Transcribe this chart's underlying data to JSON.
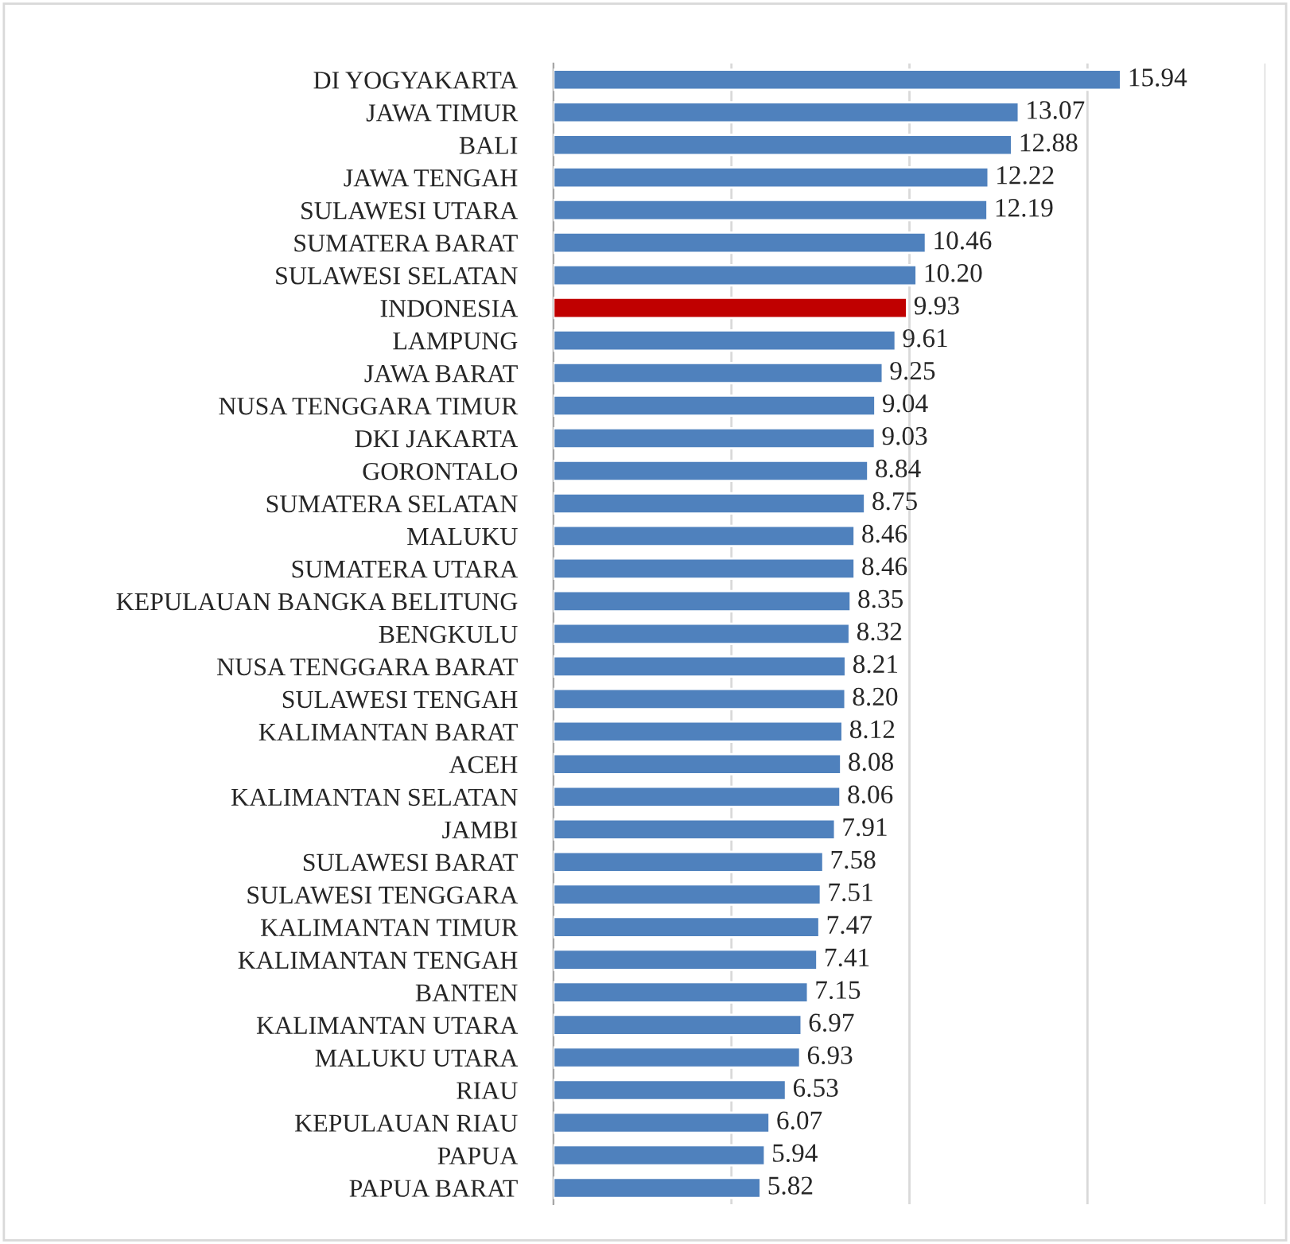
{
  "chart_data": {
    "type": "bar",
    "orientation": "horizontal",
    "categories": [
      "DI YOGYAKARTA",
      "JAWA TIMUR",
      "BALI",
      "JAWA TENGAH",
      "SULAWESI UTARA",
      "SUMATERA BARAT",
      "SULAWESI SELATAN",
      "INDONESIA",
      "LAMPUNG",
      "JAWA BARAT",
      "NUSA TENGGARA TIMUR",
      "DKI JAKARTA",
      "GORONTALO",
      "SUMATERA SELATAN",
      "MALUKU",
      "SUMATERA UTARA",
      "KEPULAUAN BANGKA BELITUNG",
      "BENGKULU",
      "NUSA TENGGARA BARAT",
      "SULAWESI TENGAH",
      "KALIMANTAN BARAT",
      "ACEH",
      "KALIMANTAN SELATAN",
      "JAMBI",
      "SULAWESI BARAT",
      "SULAWESI TENGGARA",
      "KALIMANTAN TIMUR",
      "KALIMANTAN TENGAH",
      "BANTEN",
      "KALIMANTAN UTARA",
      "MALUKU UTARA",
      "RIAU",
      "KEPULAUAN RIAU",
      "PAPUA",
      "PAPUA BARAT"
    ],
    "values": [
      15.94,
      13.07,
      12.88,
      12.22,
      12.19,
      10.46,
      10.2,
      9.93,
      9.61,
      9.25,
      9.04,
      9.03,
      8.84,
      8.75,
      8.46,
      8.46,
      8.35,
      8.32,
      8.21,
      8.2,
      8.12,
      8.08,
      8.06,
      7.91,
      7.58,
      7.51,
      7.47,
      7.41,
      7.15,
      6.97,
      6.93,
      6.53,
      6.07,
      5.94,
      5.82
    ],
    "value_labels": [
      "15.94",
      "13.07",
      "12.88",
      "12.22",
      "12.19",
      "10.46",
      "10.20",
      "9.93",
      "9.61",
      "9.25",
      "9.04",
      "9.03",
      "8.84",
      "8.75",
      "8.46",
      "8.46",
      "8.35",
      "8.32",
      "8.21",
      "8.20",
      "8.12",
      "8.08",
      "8.06",
      "7.91",
      "7.58",
      "7.51",
      "7.47",
      "7.41",
      "7.15",
      "6.97",
      "6.93",
      "6.53",
      "6.07",
      "5.94",
      "5.82"
    ],
    "colors": [
      "#4f81bd",
      "#4f81bd",
      "#4f81bd",
      "#4f81bd",
      "#4f81bd",
      "#4f81bd",
      "#4f81bd",
      "#c00000",
      "#4f81bd",
      "#4f81bd",
      "#4f81bd",
      "#4f81bd",
      "#4f81bd",
      "#4f81bd",
      "#4f81bd",
      "#4f81bd",
      "#4f81bd",
      "#4f81bd",
      "#4f81bd",
      "#4f81bd",
      "#4f81bd",
      "#4f81bd",
      "#4f81bd",
      "#4f81bd",
      "#4f81bd",
      "#4f81bd",
      "#4f81bd",
      "#4f81bd",
      "#4f81bd",
      "#4f81bd",
      "#4f81bd",
      "#4f81bd",
      "#4f81bd",
      "#4f81bd",
      "#4f81bd"
    ],
    "xlim": [
      0,
      20
    ],
    "xticks": [
      {
        "value": 0,
        "label": null
      },
      {
        "value": 5,
        "label": null
      },
      {
        "value": 10,
        "label": null
      },
      {
        "value": 15,
        "label": null
      },
      {
        "value": 20,
        "label": null
      }
    ],
    "tick_labels": "y",
    "grid": "x",
    "legend": false
  }
}
